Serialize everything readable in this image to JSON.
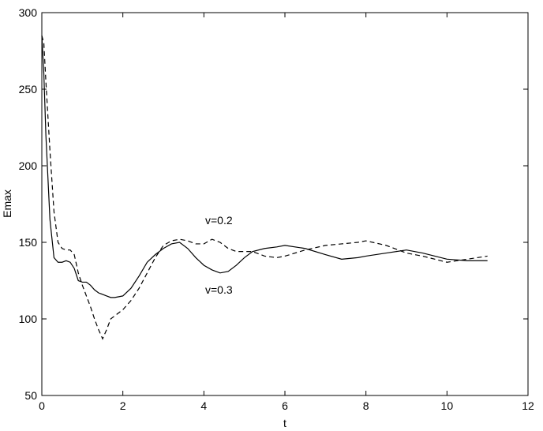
{
  "chart_data": {
    "type": "line",
    "x_label": "t",
    "y_label": "Emax",
    "x": [
      0,
      0.05,
      0.1,
      0.2,
      0.3,
      0.4,
      0.5,
      0.6,
      0.7,
      0.8,
      0.9,
      1.0,
      1.1,
      1.2,
      1.3,
      1.4,
      1.5,
      1.6,
      1.7,
      1.8,
      2.0,
      2.2,
      2.4,
      2.6,
      2.8,
      3.0,
      3.2,
      3.4,
      3.6,
      3.8,
      4.0,
      4.2,
      4.4,
      4.6,
      4.8,
      5.0,
      5.2,
      5.5,
      5.8,
      6.0,
      6.5,
      7.0,
      7.4,
      7.8,
      8.0,
      8.5,
      9.0,
      9.4,
      10.0,
      10.5,
      11.0
    ],
    "series": [
      {
        "name": "v=0.3",
        "color": "#000000",
        "dash": "solid",
        "values": [
          285,
          260,
          220,
          165,
          140,
          137,
          137,
          138,
          137,
          133,
          125,
          124,
          124,
          122,
          119,
          117,
          116,
          115,
          114,
          114,
          115,
          120,
          128,
          137,
          142,
          146,
          149,
          150,
          146,
          140,
          135,
          132,
          130,
          131,
          135,
          140,
          144,
          146,
          147,
          148,
          146,
          142,
          139,
          140,
          141,
          143,
          145,
          143,
          139,
          138,
          138
        ]
      },
      {
        "name": "v=0.2",
        "color": "#000000",
        "dash": "dashed",
        "values": [
          285,
          280,
          255,
          210,
          170,
          150,
          146,
          145,
          145,
          142,
          130,
          122,
          115,
          108,
          100,
          93,
          87,
          93,
          100,
          102,
          106,
          112,
          120,
          130,
          140,
          148,
          151,
          152,
          151,
          149,
          149,
          152,
          150,
          146,
          144,
          144,
          144,
          141,
          140,
          141,
          145,
          148,
          149,
          150,
          151,
          148,
          143,
          141,
          137,
          139,
          141
        ]
      }
    ],
    "xlim": [
      0,
      12
    ],
    "xticks": [
      0,
      2,
      4,
      6,
      8,
      10,
      12
    ],
    "ylim": [
      50,
      300
    ],
    "yticks": [
      50,
      100,
      150,
      200,
      250,
      300
    ],
    "grid": false
  }
}
